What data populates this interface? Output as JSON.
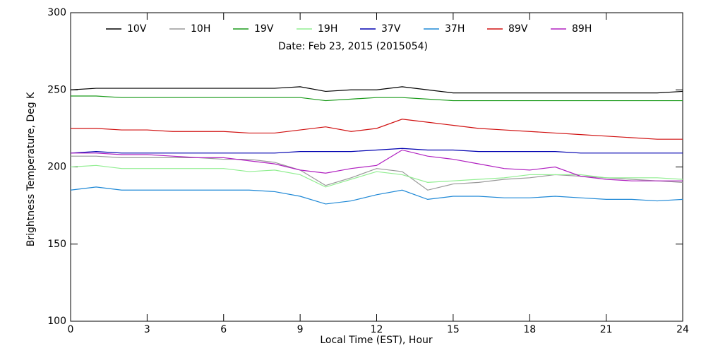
{
  "chart_data": {
    "type": "line",
    "title": "Date: Feb 23, 2015 (2015054)",
    "x_label": "Local Time (EST), Hour",
    "y_label": "Brightness Temperature, Deg K",
    "x": [
      0,
      1,
      2,
      3,
      4,
      5,
      6,
      7,
      8,
      9,
      10,
      11,
      12,
      13,
      14,
      15,
      16,
      17,
      18,
      19,
      20,
      21,
      22,
      23,
      24
    ],
    "xlim": [
      0,
      24
    ],
    "xticks": [
      0,
      3,
      6,
      9,
      12,
      15,
      18,
      21,
      24
    ],
    "ylim": [
      100,
      300
    ],
    "yticks": [
      100,
      150,
      200,
      250,
      300
    ],
    "series": [
      {
        "name": "10V",
        "color": "#000000",
        "values": [
          250,
          251,
          251,
          251,
          251,
          251,
          251,
          251,
          251,
          252,
          249,
          250,
          250,
          252,
          250,
          248,
          248,
          248,
          248,
          248,
          248,
          248,
          248,
          248,
          249
        ]
      },
      {
        "name": "10H",
        "color": "#999999",
        "values": [
          207,
          207,
          206,
          206,
          206,
          206,
          205,
          205,
          203,
          198,
          188,
          193,
          199,
          197,
          185,
          189,
          190,
          192,
          193,
          195,
          194,
          193,
          192,
          191,
          190
        ]
      },
      {
        "name": "19V",
        "color": "#1a9a1a",
        "values": [
          246,
          246,
          245,
          245,
          245,
          245,
          245,
          245,
          245,
          245,
          243,
          244,
          245,
          245,
          244,
          243,
          243,
          243,
          243,
          243,
          243,
          243,
          243,
          243,
          243
        ]
      },
      {
        "name": "19H",
        "color": "#90ee90",
        "values": [
          200,
          201,
          199,
          199,
          199,
          199,
          199,
          197,
          198,
          195,
          187,
          192,
          197,
          195,
          190,
          191,
          192,
          193,
          195,
          195,
          195,
          193,
          193,
          193,
          192
        ]
      },
      {
        "name": "37V",
        "color": "#0000b0",
        "values": [
          209,
          210,
          209,
          209,
          209,
          209,
          209,
          209,
          209,
          210,
          210,
          210,
          211,
          212,
          211,
          211,
          210,
          210,
          210,
          210,
          209,
          209,
          209,
          209,
          209
        ]
      },
      {
        "name": "37H",
        "color": "#1e88d6",
        "values": [
          185,
          187,
          185,
          185,
          185,
          185,
          185,
          185,
          184,
          181,
          176,
          178,
          182,
          185,
          179,
          181,
          181,
          180,
          180,
          181,
          180,
          179,
          179,
          178,
          179
        ]
      },
      {
        "name": "89V",
        "color": "#d01010",
        "values": [
          225,
          225,
          224,
          224,
          223,
          223,
          223,
          222,
          222,
          224,
          226,
          223,
          225,
          231,
          229,
          227,
          225,
          224,
          223,
          222,
          221,
          220,
          219,
          218,
          218
        ]
      },
      {
        "name": "89H",
        "color": "#b020c0",
        "values": [
          209,
          209,
          208,
          208,
          207,
          206,
          206,
          204,
          202,
          198,
          196,
          199,
          201,
          211,
          207,
          205,
          202,
          199,
          198,
          200,
          194,
          192,
          191,
          191,
          191
        ]
      }
    ]
  }
}
